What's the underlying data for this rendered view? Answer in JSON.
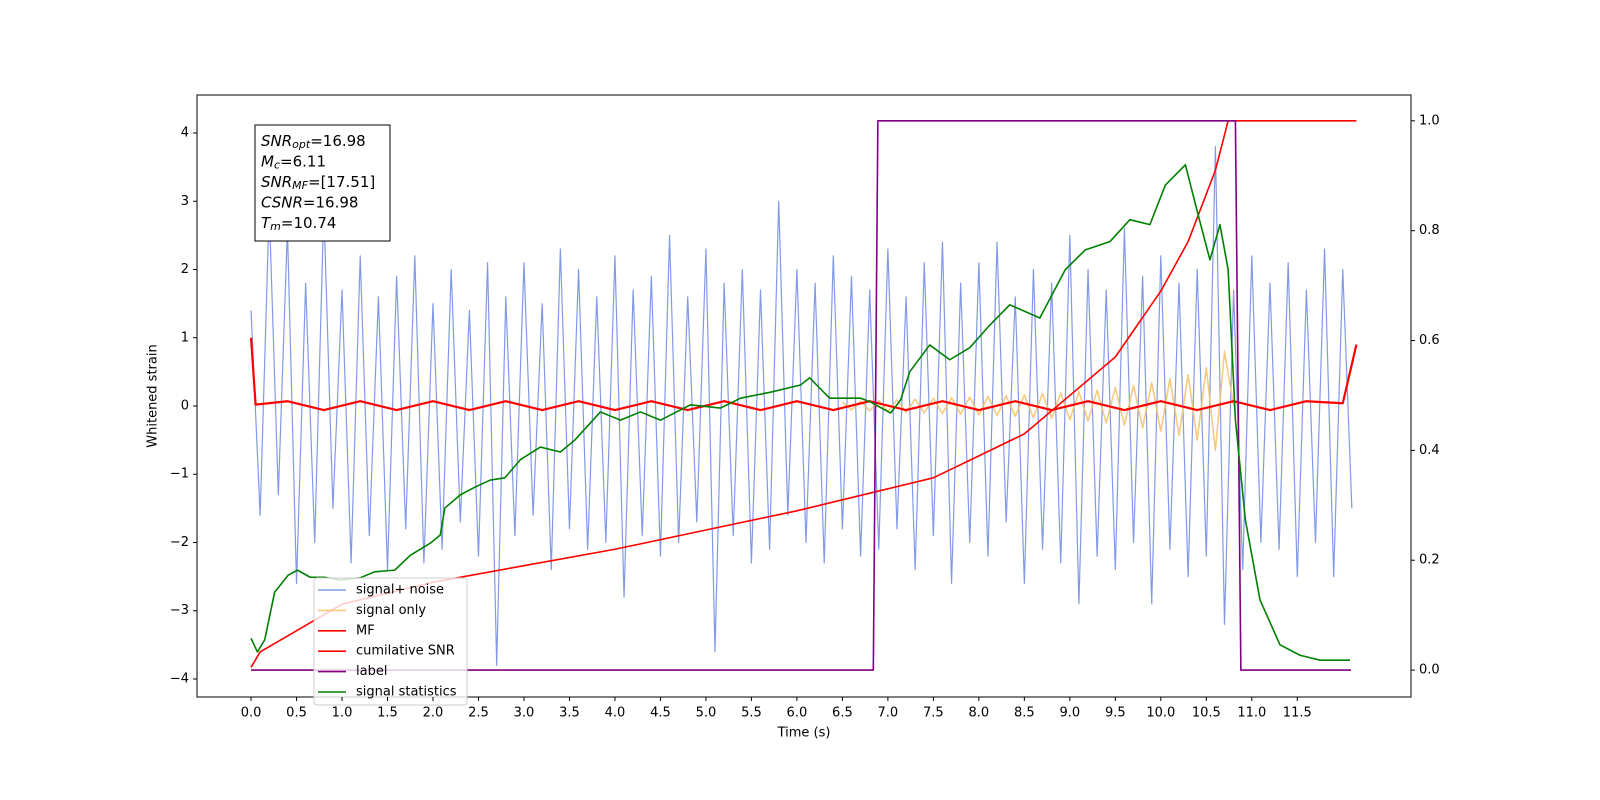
{
  "chart_data": {
    "type": "line",
    "xlabel": "Time (s)",
    "ylabel": "Whitened strain",
    "xlim": [
      -0.594,
      12.75
    ],
    "ylim": [
      -4.264,
      4.557
    ],
    "y2lim": [
      -0.049,
      1.047
    ],
    "xticks": [
      {
        "value": 0,
        "label": "0.0"
      },
      0.5,
      {
        "value": 1,
        "label": "1.0"
      },
      1.5,
      {
        "value": 2,
        "label": "2.0"
      },
      2.5,
      {
        "value": 3,
        "label": "3.0"
      },
      3.5,
      {
        "value": 4,
        "label": "4.0"
      },
      4.5,
      {
        "value": 5,
        "label": "5.0"
      },
      5.5,
      {
        "value": 6,
        "label": "6.0"
      },
      6.5,
      {
        "value": 7,
        "label": "7.0"
      },
      7.5,
      {
        "value": 8,
        "label": "8.0"
      },
      8.5,
      {
        "value": 9,
        "label": "9.0"
      },
      9.5,
      {
        "value": 10,
        "label": "10.0"
      },
      10.5,
      {
        "value": 11,
        "label": "11.0"
      },
      11.5
    ],
    "yticks": [
      {
        "value": -4,
        "label": "−4"
      },
      {
        "value": -3,
        "label": "−3"
      },
      {
        "value": -2,
        "label": "−2"
      },
      {
        "value": -1,
        "label": "−1"
      },
      0,
      1,
      2,
      3,
      4
    ],
    "y2ticks": [
      {
        "value": 0,
        "label": "0.0"
      },
      0.2,
      0.4,
      0.6,
      0.8,
      {
        "value": 1,
        "label": "1.0"
      }
    ],
    "legend_loc": "lower left",
    "annotations": [
      {
        "main": "SNR",
        "sub": "opt",
        "rest": "=16.98"
      },
      {
        "main": "M",
        "sub": "c",
        "rest": "=6.11"
      },
      {
        "main": "SNR",
        "sub": "MF",
        "rest": "=[17.51]"
      },
      {
        "main": "CSNR",
        "rest": "=16.98"
      },
      {
        "main": "T",
        "sub": "m",
        "rest": "=10.74"
      }
    ],
    "series": [
      {
        "name": "signal+ noise",
        "color": "#7b93e6",
        "x": [
          0,
          0.1,
          0.2,
          0.3,
          0.4,
          0.5,
          0.6,
          0.7,
          0.8,
          0.9,
          1,
          1.1,
          1.2,
          1.3,
          1.4,
          1.5,
          1.6,
          1.7,
          1.8,
          1.9,
          2,
          2.1,
          2.2,
          2.3,
          2.4,
          2.5,
          2.6,
          2.7,
          2.8,
          2.9,
          3,
          3.1,
          3.2,
          3.3,
          3.4,
          3.5,
          3.6,
          3.7,
          3.8,
          3.9,
          4,
          4.1,
          4.2,
          4.3,
          4.4,
          4.5,
          4.6,
          4.7,
          4.8,
          4.9,
          5,
          5.1,
          5.2,
          5.3,
          5.4,
          5.5,
          5.6,
          5.7,
          5.8,
          5.9,
          6,
          6.1,
          6.2,
          6.3,
          6.4,
          6.5,
          6.6,
          6.7,
          6.8,
          6.9,
          7,
          7.1,
          7.2,
          7.3,
          7.4,
          7.5,
          7.6,
          7.7,
          7.8,
          7.9,
          8,
          8.1,
          8.2,
          8.3,
          8.4,
          8.5,
          8.6,
          8.7,
          8.8,
          8.9,
          9,
          9.1,
          9.2,
          9.3,
          9.4,
          9.5,
          9.6,
          9.7,
          9.8,
          9.9,
          10,
          10.1,
          10.2,
          10.3,
          10.4,
          10.5,
          10.6,
          10.7,
          10.8,
          10.9,
          11,
          11.1,
          11.2,
          11.3,
          11.4,
          11.5,
          11.6,
          11.7,
          11.8,
          11.9,
          12,
          12.1
        ],
        "values": [
          1.4,
          -1.6,
          2.9,
          -1.3,
          2.6,
          -2.6,
          1.8,
          -2.0,
          2.9,
          -1.5,
          1.7,
          -2.3,
          2.2,
          -1.9,
          1.6,
          -2.4,
          1.9,
          -1.8,
          2.2,
          -2.3,
          1.5,
          -2.1,
          2.0,
          -1.7,
          1.4,
          -2.2,
          2.1,
          -3.8,
          1.6,
          -1.9,
          2.1,
          -1.6,
          1.5,
          -2.4,
          2.3,
          -1.8,
          2.0,
          -2.1,
          1.6,
          -2.0,
          2.2,
          -2.8,
          1.7,
          -1.9,
          1.9,
          -2.2,
          2.5,
          -2.0,
          1.6,
          -1.7,
          2.3,
          -3.6,
          1.8,
          -1.9,
          2.0,
          -2.3,
          1.7,
          -2.1,
          3.0,
          -1.6,
          2.0,
          -2.0,
          1.8,
          -2.3,
          2.2,
          -1.8,
          1.9,
          -2.2,
          1.7,
          -2.1,
          2.3,
          -1.8,
          1.6,
          -2.4,
          2.1,
          -1.9,
          2.4,
          -2.6,
          1.8,
          -2.0,
          2.1,
          -2.2,
          2.4,
          -1.7,
          1.6,
          -2.6,
          2.0,
          -2.1,
          1.8,
          -2.3,
          2.5,
          -2.9,
          2.0,
          -2.2,
          1.7,
          -2.4,
          2.6,
          -2.0,
          1.9,
          -2.9,
          2.2,
          -2.1,
          1.8,
          -2.5,
          2.0,
          -2.2,
          3.8,
          -3.2,
          1.7,
          -2.4,
          2.2,
          -2.0,
          1.8,
          -2.1,
          2.1,
          -2.5,
          1.7,
          -2.0,
          2.3,
          -2.5,
          2.0,
          -1.5
        ]
      },
      {
        "name": "signal only",
        "color": "#f5c26b",
        "x": [
          6.5,
          6.6,
          6.7,
          6.8,
          6.9,
          7,
          7.1,
          7.2,
          7.3,
          7.4,
          7.5,
          7.6,
          7.7,
          7.8,
          7.9,
          8,
          8.1,
          8.2,
          8.3,
          8.4,
          8.5,
          8.6,
          8.7,
          8.8,
          8.9,
          9,
          9.1,
          9.2,
          9.3,
          9.4,
          9.5,
          9.6,
          9.7,
          9.8,
          9.9,
          10,
          10.1,
          10.2,
          10.3,
          10.4,
          10.5,
          10.6,
          10.7,
          10.8
        ],
        "values": [
          0.06,
          -0.06,
          0.07,
          -0.07,
          0.08,
          -0.08,
          0.09,
          -0.09,
          0.1,
          -0.1,
          0.11,
          -0.11,
          0.12,
          -0.12,
          0.13,
          -0.13,
          0.14,
          -0.14,
          0.15,
          -0.15,
          0.16,
          -0.17,
          0.18,
          -0.18,
          0.19,
          -0.2,
          0.21,
          -0.22,
          0.23,
          -0.25,
          0.27,
          -0.28,
          0.3,
          -0.32,
          0.34,
          -0.37,
          0.4,
          -0.43,
          0.46,
          -0.5,
          0.56,
          -0.65,
          0.8,
          0
        ]
      },
      {
        "name": "MF",
        "color": "#ff0000",
        "x": [
          0,
          0.05,
          0.4,
          0.8,
          1.2,
          1.6,
          2,
          2.4,
          2.8,
          3.2,
          3.6,
          4,
          4.4,
          4.8,
          5.2,
          5.6,
          6,
          6.4,
          6.8,
          7.2,
          7.6,
          8,
          8.4,
          8.8,
          9.2,
          9.6,
          10,
          10.4,
          10.8,
          11.2,
          11.6,
          12,
          12.15
        ],
        "values": [
          1.0,
          0.02,
          0.07,
          -0.06,
          0.07,
          -0.06,
          0.07,
          -0.06,
          0.07,
          -0.06,
          0.07,
          -0.06,
          0.07,
          -0.06,
          0.07,
          -0.06,
          0.07,
          -0.06,
          0.07,
          -0.06,
          0.07,
          -0.06,
          0.07,
          -0.06,
          0.07,
          -0.06,
          0.07,
          -0.06,
          0.07,
          -0.06,
          0.07,
          0.04,
          0.9
        ]
      },
      {
        "name": "cumilative SNR",
        "color": "#ff0000",
        "axis": "y2",
        "x": [
          0,
          0.1,
          1,
          2,
          3,
          4,
          5,
          6,
          6.5,
          7,
          7.5,
          8,
          8.5,
          9,
          9.5,
          10,
          10.3,
          10.6,
          10.74,
          12.15
        ],
        "values": [
          0.005,
          0.033,
          0.12,
          0.16,
          0.19,
          0.22,
          0.255,
          0.29,
          0.31,
          0.33,
          0.35,
          0.39,
          0.43,
          0.5,
          0.57,
          0.69,
          0.78,
          0.91,
          1.0,
          1.0
        ]
      },
      {
        "name": "label",
        "color": "#800080",
        "axis": "y2",
        "x": [
          0,
          6.84,
          6.89,
          10.82,
          10.88,
          12.09
        ],
        "values": [
          0,
          0,
          1,
          1,
          0,
          0
        ]
      },
      {
        "name": "signal statistics",
        "color": "#008000",
        "axis": "y2",
        "x": [
          0,
          0.07,
          0.15,
          0.26,
          0.41,
          0.51,
          0.65,
          0.81,
          0.98,
          1.2,
          1.36,
          1.58,
          1.75,
          1.97,
          2.08,
          2.13,
          2.3,
          2.46,
          2.63,
          2.79,
          2.96,
          3.18,
          3.4,
          3.56,
          3.84,
          4.06,
          4.28,
          4.5,
          4.83,
          5.16,
          5.38,
          5.71,
          6.04,
          6.14,
          6.36,
          6.7,
          6.81,
          7.03,
          7.14,
          7.24,
          7.46,
          7.68,
          7.9,
          8.12,
          8.34,
          8.67,
          8.95,
          9.17,
          9.44,
          9.66,
          9.88,
          10.05,
          10.27,
          10.41,
          10.54,
          10.65,
          10.74,
          10.82,
          10.93,
          11.09,
          11.31,
          11.53,
          11.75,
          12.08
        ],
        "values": [
          0.058,
          0.033,
          0.055,
          0.142,
          0.173,
          0.182,
          0.169,
          0.169,
          0.164,
          0.168,
          0.179,
          0.182,
          0.209,
          0.231,
          0.246,
          0.295,
          0.319,
          0.333,
          0.346,
          0.35,
          0.383,
          0.406,
          0.397,
          0.419,
          0.47,
          0.455,
          0.47,
          0.455,
          0.483,
          0.477,
          0.495,
          0.506,
          0.519,
          0.532,
          0.495,
          0.495,
          0.488,
          0.468,
          0.492,
          0.543,
          0.592,
          0.565,
          0.587,
          0.628,
          0.665,
          0.641,
          0.729,
          0.765,
          0.78,
          0.82,
          0.811,
          0.883,
          0.92,
          0.829,
          0.747,
          0.811,
          0.729,
          0.455,
          0.273,
          0.128,
          0.046,
          0.027,
          0.018,
          0.018
        ]
      }
    ]
  }
}
